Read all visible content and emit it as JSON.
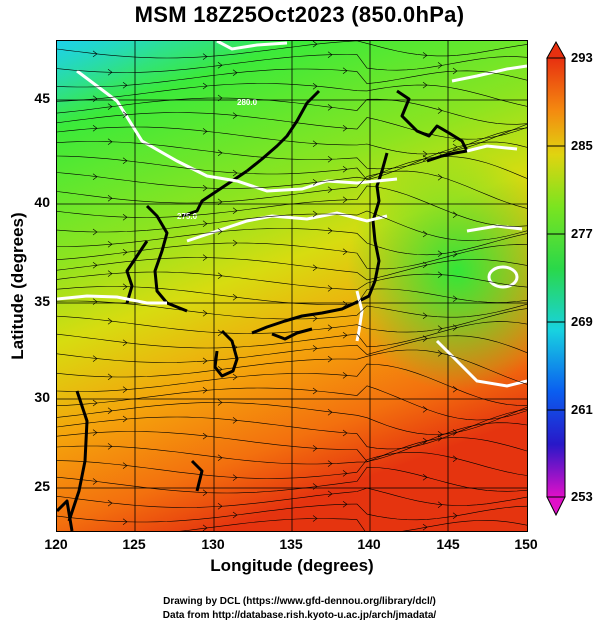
{
  "title": "MSM 18Z25Oct2023 (850.0hPa)",
  "x_axis": {
    "label": "Longitude (degrees)",
    "ticks": [
      "120",
      "125",
      "130",
      "135",
      "140",
      "145",
      "150"
    ]
  },
  "y_axis": {
    "label": "Latitude  (degrees)",
    "ticks": [
      "25",
      "30",
      "35",
      "40",
      "45"
    ]
  },
  "colorbar": {
    "ticks": [
      "293",
      "285",
      "277",
      "269",
      "261",
      "253"
    ]
  },
  "footer": {
    "line1": "Drawing by DCL (https://www.gfd-dennou.org/library/dcl/)",
    "line2": "Data from http://database.rish.kyoto-u.ac.jp/arch/jmadata/"
  },
  "contour_labels": [
    "280.0",
    "275.0"
  ],
  "colors": {
    "warm": "#e83a10",
    "mid": "#2ee04a",
    "cool": "#20d8e0"
  }
}
